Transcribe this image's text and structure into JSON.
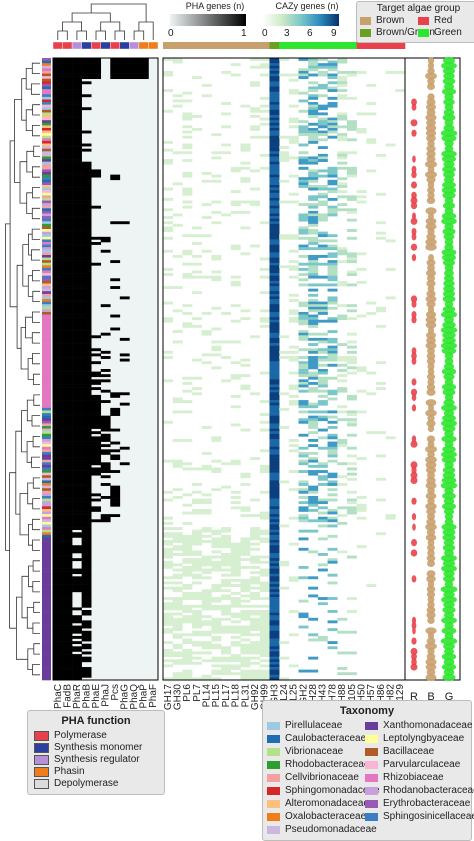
{
  "chart_data": [
    {
      "type": "heatmap",
      "name": "PHA genes presence (clustered)",
      "columns": [
        "PhaC",
        "FadB",
        "PhaR",
        "PhaB",
        "PhaE",
        "PhaJ",
        "Pcs",
        "PhaG",
        "PhaQ",
        "PhaP",
        "PhaF"
      ],
      "column_function": [
        "Polymerase",
        "Polymerase",
        "Synthesis regulator",
        "Synthesis monomer",
        "Polymerase",
        "Synthesis monomer",
        "Polymerase",
        "Synthesis monomer",
        "Synthesis regulator",
        "Phasin",
        "Phasin"
      ],
      "colorbar": {
        "title": "PHA genes (n)",
        "min": 0,
        "max": 1
      }
    },
    {
      "type": "heatmap",
      "name": "CAZy genes",
      "columns": [
        "GH17",
        "GH30",
        "PL6",
        "PL7",
        "PL14",
        "PL15",
        "PL17",
        "PL18",
        "PL31",
        "GH92",
        "GH99",
        "GH3",
        "PL24",
        "PL25",
        "GH2",
        "GH28",
        "GH43",
        "GH78",
        "GH88",
        "GH105",
        "GH50",
        "GH57",
        "GH86",
        "GH82",
        "GH129"
      ],
      "column_algae_group": [
        "Brown",
        "Brown",
        "Brown",
        "Brown",
        "Brown",
        "Brown",
        "Brown",
        "Brown",
        "Brown",
        "Brown",
        "Brown",
        "Brown/Green",
        "Green",
        "Green",
        "Green",
        "Green",
        "Green",
        "Green",
        "Green",
        "Green",
        "Red",
        "Red",
        "Red",
        "Red",
        "Red"
      ],
      "colorbar": {
        "title": "CAZy genes (n)",
        "ticks": [
          0,
          3,
          6,
          9
        ]
      }
    },
    {
      "type": "scatter",
      "name": "Target algae group columns",
      "x_labels": [
        "R",
        "B",
        "G"
      ]
    }
  ],
  "pha_function_legend": {
    "title": "PHA function",
    "items": [
      {
        "label": "Polymerase",
        "color": "#e8414b"
      },
      {
        "label": "Synthesis monomer",
        "color": "#2a3fa0"
      },
      {
        "label": "Synthesis regulator",
        "color": "#b58fd8"
      },
      {
        "label": "Phasin",
        "color": "#f07d1a"
      },
      {
        "label": "Depolymerase",
        "color": "#dcdcdc"
      }
    ]
  },
  "taxonomy_legend": {
    "title": "Taxonomy",
    "items": [
      {
        "label": "Pirellulaceae",
        "color": "#9ecae1"
      },
      {
        "label": "Caulobacteraceae",
        "color": "#1f6eb4"
      },
      {
        "label": "Vibrionaceae",
        "color": "#b5e08a"
      },
      {
        "label": "Rhodobacteraceae",
        "color": "#2e9e2e"
      },
      {
        "label": "Cellvibrionaceae",
        "color": "#f4a0a0"
      },
      {
        "label": "Sphingomonadaceae",
        "color": "#d62728"
      },
      {
        "label": "Alteromonadaceae",
        "color": "#fcbf7e"
      },
      {
        "label": "Oxalobacteraceae",
        "color": "#f07d1a"
      },
      {
        "label": "Pseudomonadaceae",
        "color": "#cdb6e0"
      },
      {
        "label": "Xanthomonadaceae",
        "color": "#6a3d9a"
      },
      {
        "label": "Leptolyngbyaceae",
        "color": "#ffff99"
      },
      {
        "label": "Bacillaceae",
        "color": "#b15928"
      },
      {
        "label": "Parvularculaceae",
        "color": "#f7b6d2"
      },
      {
        "label": "Rhizobiaceae",
        "color": "#e377c2"
      },
      {
        "label": "Rhodanobacteraceae",
        "color": "#c9a0dc"
      },
      {
        "label": "Erythrobacteraceae",
        "color": "#9b59b6"
      },
      {
        "label": "Sphingosinicellaceae",
        "color": "#3b7ec4"
      }
    ]
  },
  "algae_legend": {
    "title": "Target algae group",
    "items": [
      {
        "label": "Brown",
        "color": "#c8a06e"
      },
      {
        "label": "Red",
        "color": "#e8414b"
      },
      {
        "label": "Brown/Green",
        "color": "#6aa121"
      },
      {
        "label": "Green",
        "color": "#2ee62e"
      }
    ]
  }
}
